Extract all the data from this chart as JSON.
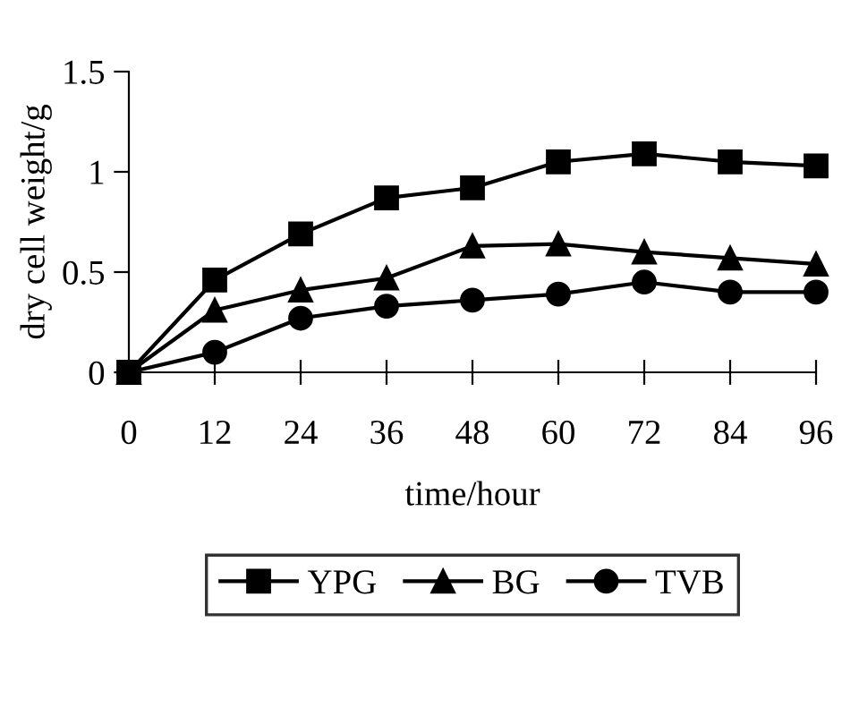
{
  "chart_data": {
    "type": "line",
    "xlabel": "time/hour",
    "ylabel": "dry cell weight/g",
    "x": [
      0,
      12,
      24,
      36,
      48,
      60,
      72,
      84,
      96
    ],
    "xlim": [
      0,
      96
    ],
    "xticks": [
      0,
      12,
      24,
      36,
      48,
      60,
      72,
      84,
      96
    ],
    "ylim": [
      0,
      1.5
    ],
    "yticks": [
      0,
      0.5,
      1,
      1.5
    ],
    "grid": false,
    "legend": "bottom",
    "series": [
      {
        "name": "YPG",
        "color": "#000000",
        "marker": "square",
        "values": [
          0,
          0.46,
          0.69,
          0.87,
          0.92,
          1.05,
          1.09,
          1.05,
          1.03
        ]
      },
      {
        "name": "BG",
        "color": "#000000",
        "marker": "triangle",
        "values": [
          0,
          0.31,
          0.41,
          0.47,
          0.63,
          0.64,
          0.6,
          0.57,
          0.54
        ]
      },
      {
        "name": "TVB",
        "color": "#000000",
        "marker": "circle",
        "values": [
          0,
          0.1,
          0.27,
          0.33,
          0.36,
          0.39,
          0.45,
          0.4,
          0.4
        ]
      }
    ]
  }
}
